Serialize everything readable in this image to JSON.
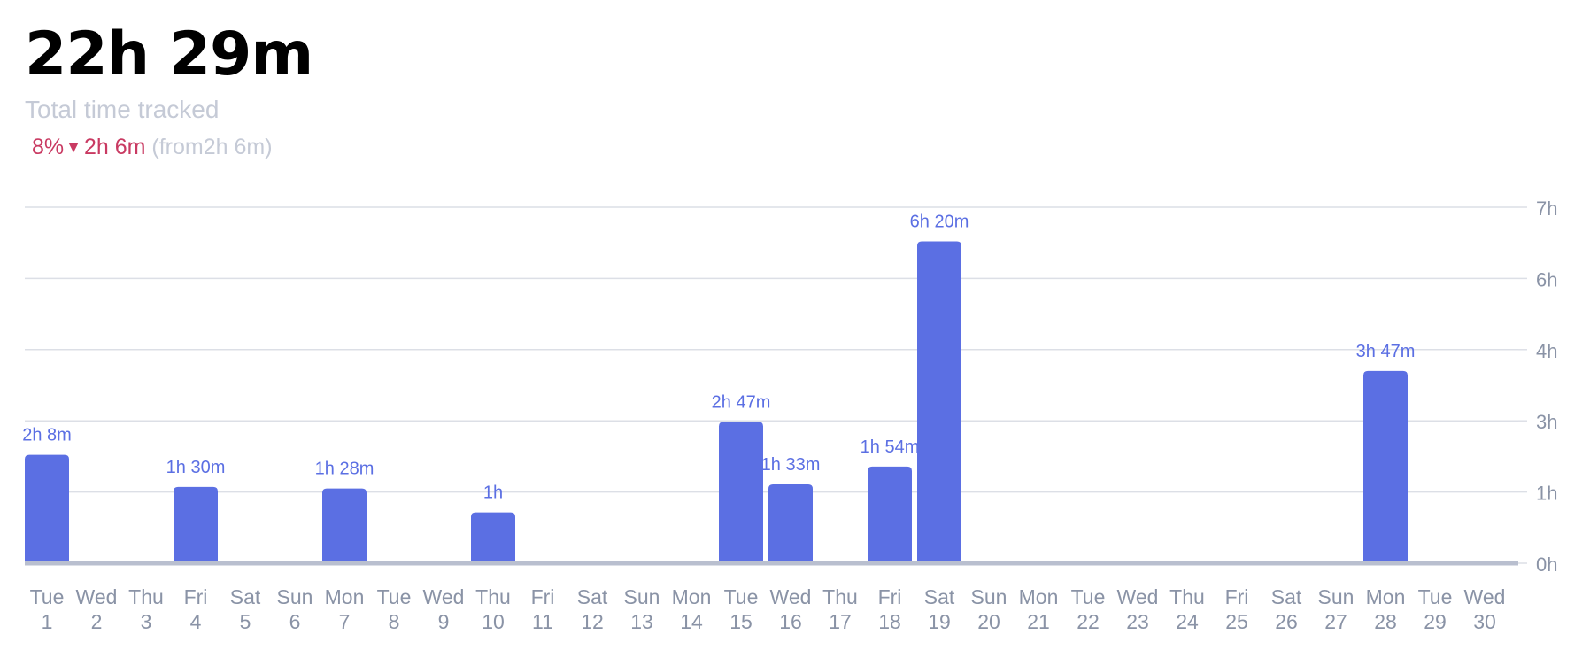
{
  "summary": {
    "total": "22h 29m",
    "label": "Total time tracked",
    "change_percent": "8%",
    "change_amount": "2h 6m",
    "from_text": "(from2h 6m)"
  },
  "colors": {
    "accent": "#5b6fe3",
    "negative": "#c93a62",
    "muted_text": "#c5cad6",
    "axis_text": "#8a93a6",
    "gridline": "#dcdfe6",
    "baseline": "#b9bfcf"
  },
  "chart_data": {
    "type": "bar",
    "title": "",
    "xlabel": "",
    "ylabel": "",
    "y_axis_position": "right",
    "grid": true,
    "ylim_hours": [
      0,
      7
    ],
    "y_ticks": [
      {
        "label": "0h",
        "value": 0
      },
      {
        "label": "1h",
        "value": 1
      },
      {
        "label": "3h",
        "value": 2
      },
      {
        "label": "4h",
        "value": 3
      },
      {
        "label": "6h",
        "value": 4
      },
      {
        "label": "7h",
        "value": 5
      }
    ],
    "categories": [
      {
        "weekday": "Tue",
        "day": "1"
      },
      {
        "weekday": "Wed",
        "day": "2"
      },
      {
        "weekday": "Thu",
        "day": "3"
      },
      {
        "weekday": "Fri",
        "day": "4"
      },
      {
        "weekday": "Sat",
        "day": "5"
      },
      {
        "weekday": "Sun",
        "day": "6"
      },
      {
        "weekday": "Mon",
        "day": "7"
      },
      {
        "weekday": "Tue",
        "day": "8"
      },
      {
        "weekday": "Wed",
        "day": "9"
      },
      {
        "weekday": "Thu",
        "day": "10"
      },
      {
        "weekday": "Fri",
        "day": "11"
      },
      {
        "weekday": "Sat",
        "day": "12"
      },
      {
        "weekday": "Sun",
        "day": "13"
      },
      {
        "weekday": "Mon",
        "day": "14"
      },
      {
        "weekday": "Tue",
        "day": "15"
      },
      {
        "weekday": "Wed",
        "day": "16"
      },
      {
        "weekday": "Thu",
        "day": "17"
      },
      {
        "weekday": "Fri",
        "day": "18"
      },
      {
        "weekday": "Sat",
        "day": "19"
      },
      {
        "weekday": "Sun",
        "day": "20"
      },
      {
        "weekday": "Mon",
        "day": "21"
      },
      {
        "weekday": "Tue",
        "day": "22"
      },
      {
        "weekday": "Wed",
        "day": "23"
      },
      {
        "weekday": "Thu",
        "day": "24"
      },
      {
        "weekday": "Fri",
        "day": "25"
      },
      {
        "weekday": "Sat",
        "day": "26"
      },
      {
        "weekday": "Sun",
        "day": "27"
      },
      {
        "weekday": "Mon",
        "day": "28"
      },
      {
        "weekday": "Tue",
        "day": "29"
      },
      {
        "weekday": "Wed",
        "day": "30"
      }
    ],
    "values_hours": [
      2.13,
      0,
      0,
      1.5,
      0,
      0,
      1.47,
      0,
      0,
      1.0,
      0,
      0,
      0,
      0,
      2.78,
      1.55,
      0,
      1.9,
      6.33,
      0,
      0,
      0,
      0,
      0,
      0,
      0,
      0,
      3.78,
      0,
      0
    ],
    "data_labels": [
      "2h 8m",
      "",
      "",
      "1h 30m",
      "",
      "",
      "1h 28m",
      "",
      "",
      "1h",
      "",
      "",
      "",
      "",
      "2h 47m",
      "1h 33m",
      "",
      "1h 54m",
      "6h 20m",
      "",
      "",
      "",
      "",
      "",
      "",
      "",
      "",
      "3h 47m",
      "",
      ""
    ]
  }
}
